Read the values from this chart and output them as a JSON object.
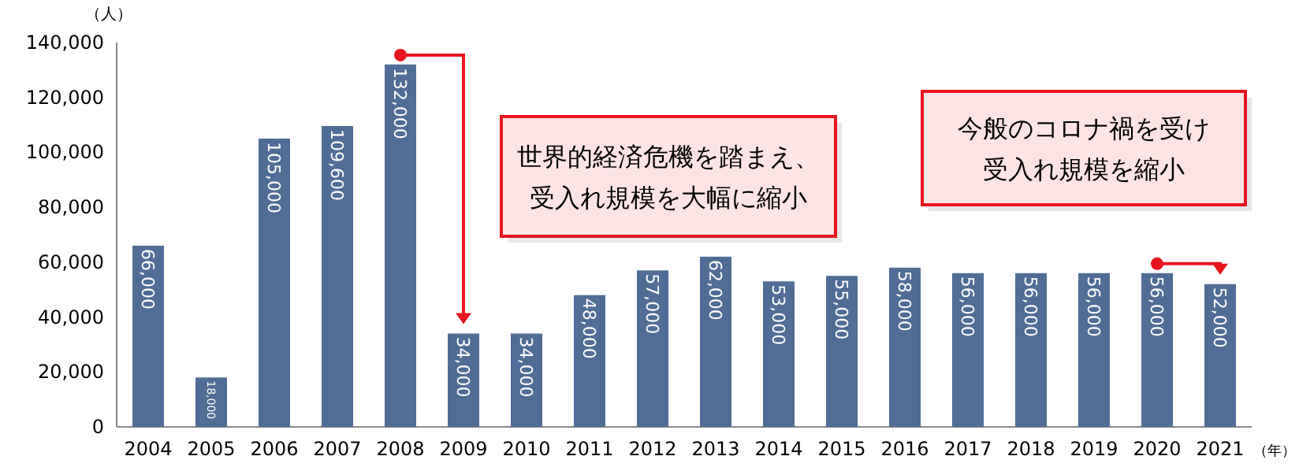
{
  "chart_data": {
    "type": "bar",
    "xlabel": "（年）",
    "ylabel": "（人）",
    "categories": [
      "2004",
      "2005",
      "2006",
      "2007",
      "2008",
      "2009",
      "2010",
      "2011",
      "2012",
      "2013",
      "2014",
      "2015",
      "2016",
      "2017",
      "2018",
      "2019",
      "2020",
      "2021"
    ],
    "values": [
      66000,
      18000,
      105000,
      109600,
      132000,
      34000,
      34000,
      48000,
      57000,
      62000,
      53000,
      55000,
      58000,
      56000,
      56000,
      56000,
      56000,
      52000
    ],
    "color": "#4f6d96",
    "value_labels": [
      "66,000",
      "18,000",
      "105,000",
      "109,600",
      "132,000",
      "34,000",
      "34,000",
      "48,000",
      "57,000",
      "62,000",
      "53,000",
      "55,000",
      "58,000",
      "56,000",
      "56,000",
      "56,000",
      "56,000",
      "52,000"
    ],
    "ylim": [
      0,
      140000
    ],
    "yticks": [
      {
        "value": 0,
        "label": "0"
      },
      {
        "value": 20000,
        "label": "20,000"
      },
      {
        "value": 40000,
        "label": "40,000"
      },
      {
        "value": 60000,
        "label": "60,000"
      },
      {
        "value": 80000,
        "label": "80,000"
      },
      {
        "value": 100000,
        "label": "100,000"
      },
      {
        "value": 120000,
        "label": "120,000"
      },
      {
        "value": 140000,
        "label": "140,000"
      }
    ],
    "annotations": [
      "世界的経済危機を踏まえ、受入れ規模を大幅に縮小",
      "今般のコロナ禍を受け受入れ規模を縮小"
    ]
  }
}
